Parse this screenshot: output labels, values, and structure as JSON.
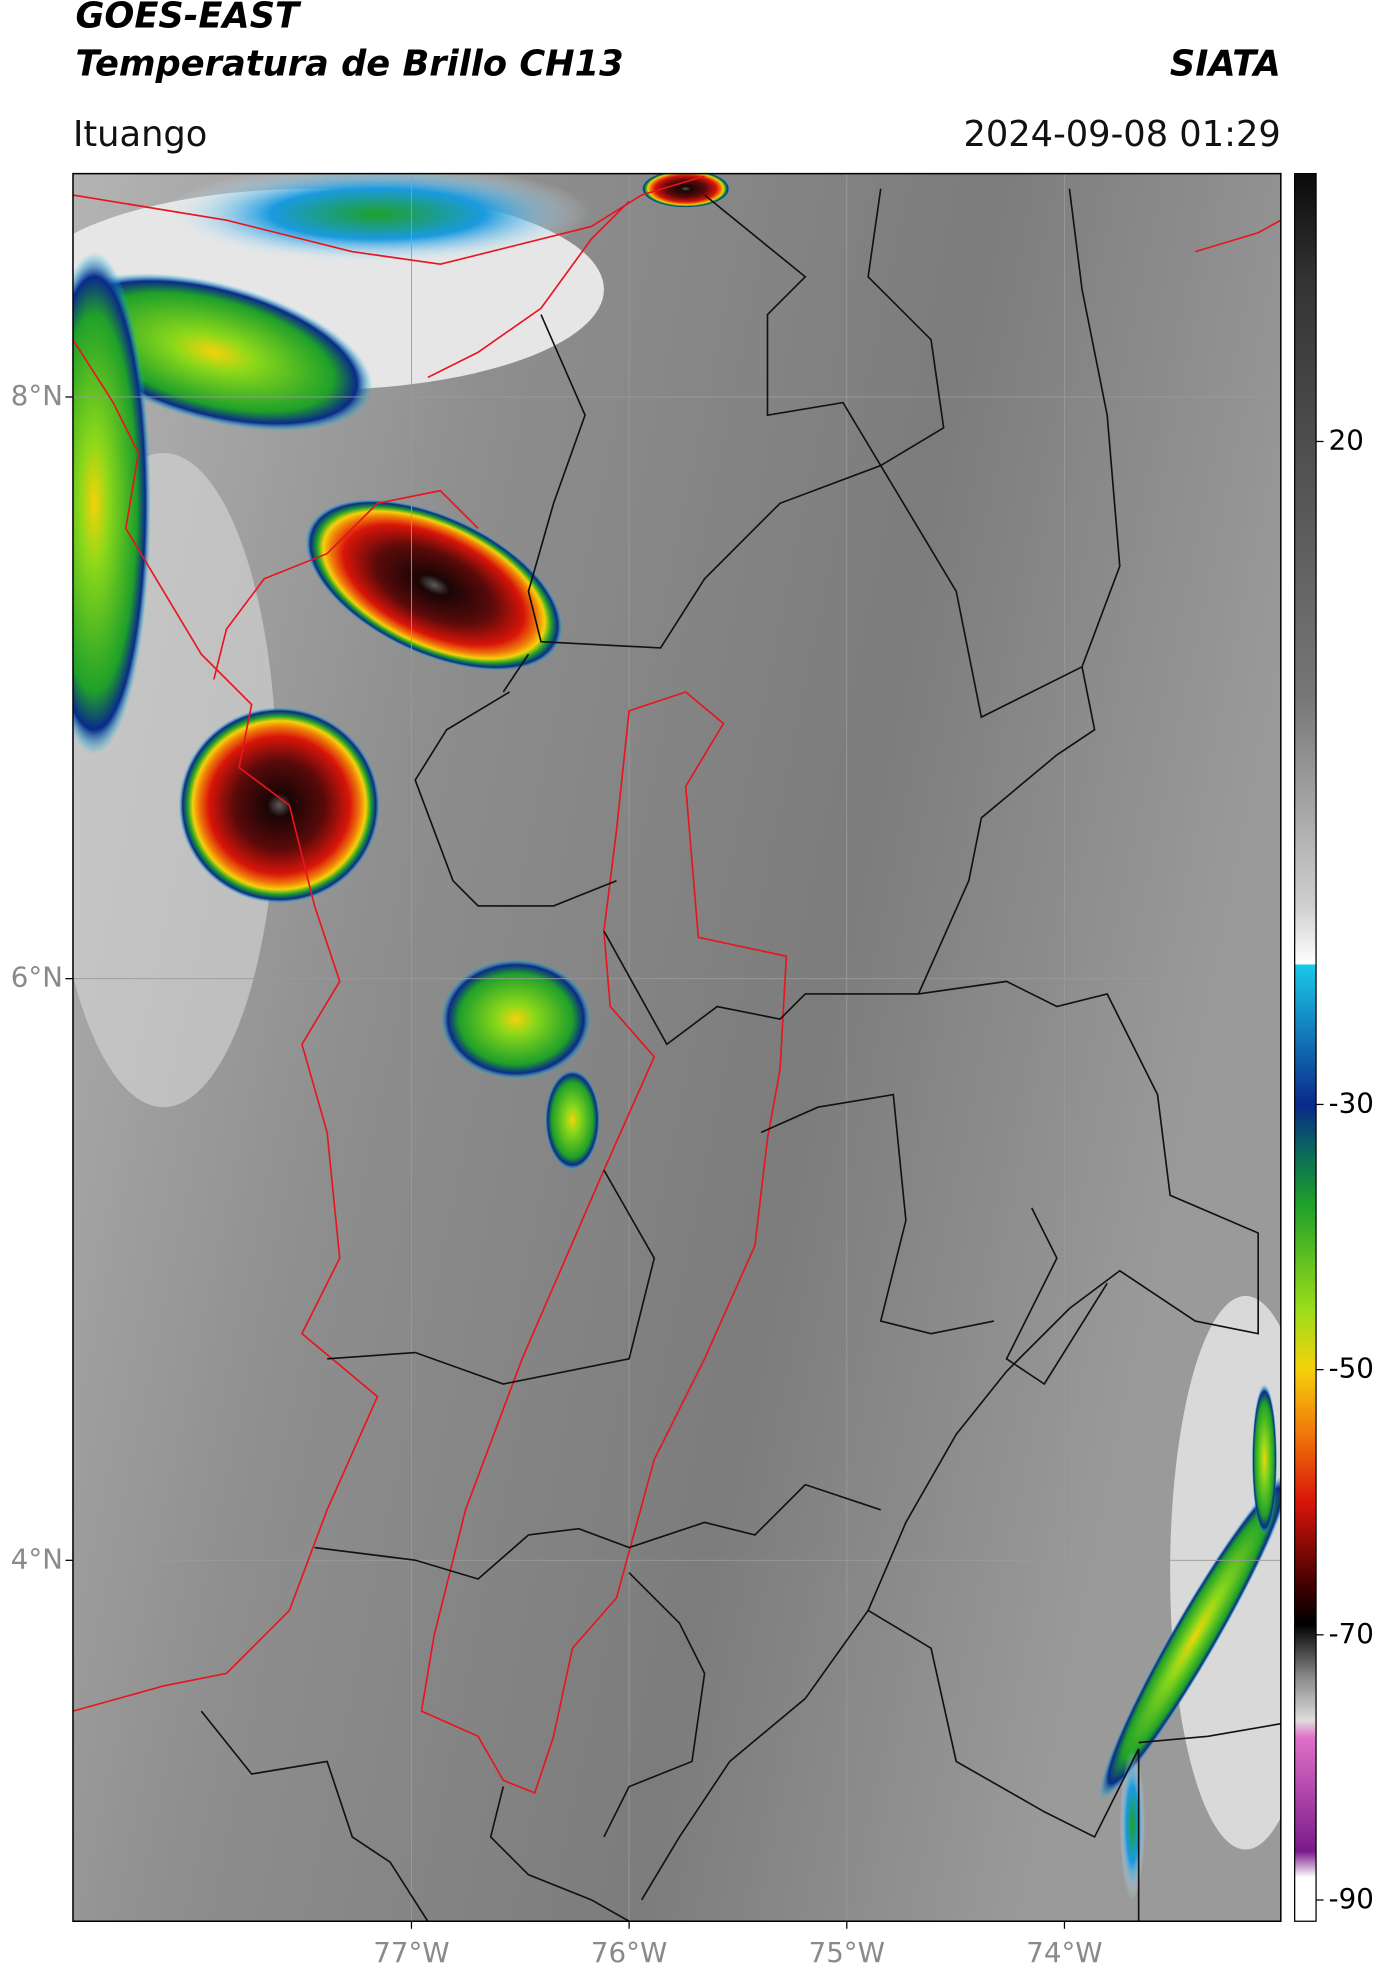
{
  "header": {
    "title": "GOES-EAST",
    "subtitle": "Temperatura de Brillo CH13",
    "source": "SIATA",
    "location": "Ituango",
    "timestamp": "2024-09-08 01:29"
  },
  "map": {
    "xlim": [
      -78.555,
      -73.006
    ],
    "ylim": [
      2.759,
      8.768
    ],
    "xticks": [
      {
        "value": -77,
        "label": "77°W"
      },
      {
        "value": -76,
        "label": "76°W"
      },
      {
        "value": -75,
        "label": "75°W"
      },
      {
        "value": -74,
        "label": "74°W"
      }
    ],
    "yticks": [
      {
        "value": 8,
        "label": "8°N"
      },
      {
        "value": 6,
        "label": "6°N"
      },
      {
        "value": 4,
        "label": "4°N"
      }
    ]
  },
  "colorbar": {
    "lim": [
      -91.6,
      40.2
    ],
    "ticks": [
      20,
      -30,
      -50,
      -70,
      -90
    ]
  }
}
